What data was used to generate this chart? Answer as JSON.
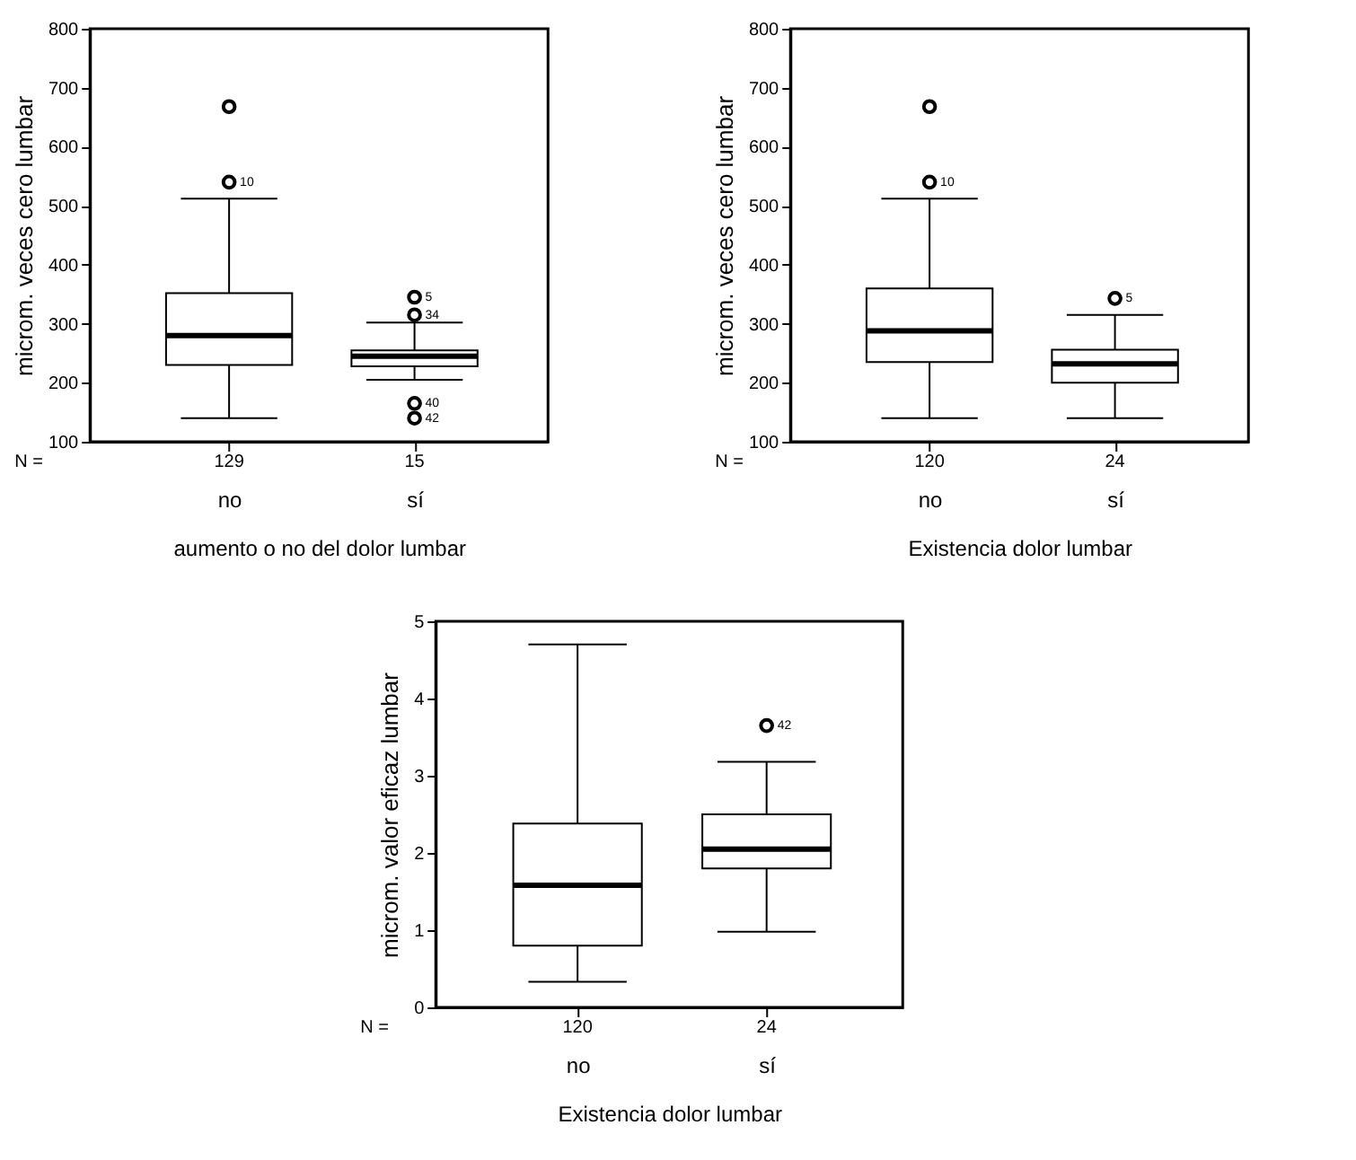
{
  "chart_data": [
    {
      "type": "box",
      "xlabel": "aumento o no del dolor lumbar",
      "ylabel": "microm. veces cero lumbar",
      "categories": [
        "no",
        "sí"
      ],
      "boxes": [
        {
          "low": 140,
          "q1": 230,
          "median": 280,
          "q3": 352,
          "high": 512,
          "outliers": [
            668,
            540
          ]
        },
        {
          "low": 205,
          "q1": 228,
          "median": 245,
          "q3": 255,
          "high": 302,
          "outliers": [
            345,
            315,
            165,
            140
          ]
        }
      ],
      "ylim": [
        100,
        800
      ],
      "yticks": [
        100,
        200,
        300,
        400,
        500,
        600,
        700,
        800
      ],
      "annotations": [
        "N =",
        "129",
        "15",
        "10",
        "5",
        "34",
        "40",
        "42"
      ]
    },
    {
      "type": "box",
      "xlabel": "Existencia dolor lumbar",
      "ylabel": "microm. veces cero lumbar",
      "categories": [
        "no",
        "sí"
      ],
      "boxes": [
        {
          "low": 140,
          "q1": 235,
          "median": 288,
          "q3": 360,
          "high": 512,
          "outliers": [
            668,
            540
          ]
        },
        {
          "low": 140,
          "q1": 200,
          "median": 232,
          "q3": 256,
          "high": 315,
          "outliers": [
            343
          ]
        }
      ],
      "ylim": [
        100,
        800
      ],
      "yticks": [
        100,
        200,
        300,
        400,
        500,
        600,
        700,
        800
      ],
      "annotations": [
        "N =",
        "120",
        "24",
        "10",
        "5"
      ]
    },
    {
      "type": "box",
      "xlabel": "Existencia dolor lumbar",
      "ylabel": "microm. valor eficaz lumbar",
      "categories": [
        "no",
        "sí"
      ],
      "boxes": [
        {
          "low": 0.33,
          "q1": 0.8,
          "median": 1.58,
          "q3": 2.38,
          "high": 4.7
        },
        {
          "low": 0.98,
          "q1": 1.8,
          "median": 2.05,
          "q3": 2.5,
          "high": 3.18,
          "outliers": [
            3.65
          ]
        }
      ],
      "ylim": [
        0,
        5
      ],
      "yticks": [
        0,
        1,
        2,
        3,
        4,
        5
      ],
      "annotations": [
        "N =",
        "120",
        "24",
        "42"
      ]
    }
  ]
}
